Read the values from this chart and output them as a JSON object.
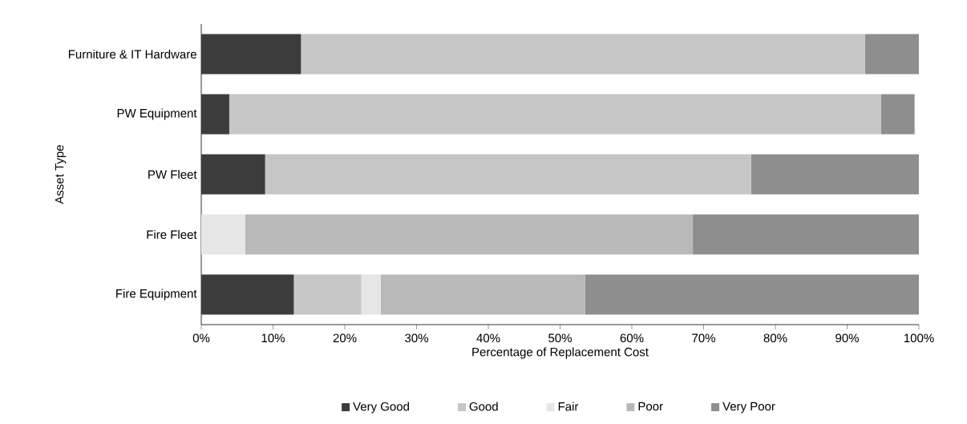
{
  "chart_data": {
    "type": "bar",
    "orientation": "horizontal",
    "stacked": true,
    "xlabel": "Percentage of Replacement Cost",
    "ylabel": "Asset Type",
    "categories": [
      "Furniture & IT Hardware",
      "PW Equipment",
      "PW Fleet",
      "Fire Fleet",
      "Fire Equipment"
    ],
    "series": [
      {
        "name": "Very Good",
        "color": "#3c3c3c",
        "values": [
          13.9,
          3.9,
          8.9,
          0,
          12.9
        ]
      },
      {
        "name": "Good",
        "color": "#c6c6c6",
        "values": [
          78.6,
          90.8,
          67.7,
          0,
          9.4
        ]
      },
      {
        "name": "Fair",
        "color": "#e6e6e6",
        "values": [
          0,
          0,
          0,
          6.1,
          2.7
        ]
      },
      {
        "name": "Poor",
        "color": "#b9b9b9",
        "values": [
          0,
          0,
          0,
          62.4,
          28.5
        ]
      },
      {
        "name": "Very Poor",
        "color": "#8e8e8e",
        "values": [
          7.5,
          4.7,
          23.4,
          31.5,
          46.5
        ]
      }
    ],
    "xlim": [
      0,
      100
    ],
    "xticks": [
      {
        "value": 0,
        "label": "0%"
      },
      {
        "value": 10,
        "label": "10%"
      },
      {
        "value": 20,
        "label": "20%"
      },
      {
        "value": 30,
        "label": "30%"
      },
      {
        "value": 40,
        "label": "40%"
      },
      {
        "value": 50,
        "label": "50%"
      },
      {
        "value": 60,
        "label": "60%"
      },
      {
        "value": 70,
        "label": "70%"
      },
      {
        "value": 80,
        "label": "80%"
      },
      {
        "value": 90,
        "label": "90%"
      },
      {
        "value": 100,
        "label": "100%"
      }
    ],
    "grid": false,
    "legend": "bottom"
  }
}
